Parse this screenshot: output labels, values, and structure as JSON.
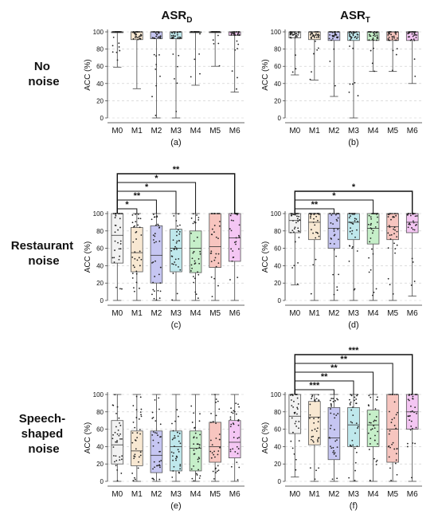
{
  "column_headers": [
    {
      "main": "ASR",
      "sub": "D"
    },
    {
      "main": "ASR",
      "sub": "T"
    }
  ],
  "row_labels": [
    [
      "No",
      "noise"
    ],
    [
      "Restaurant",
      "noise"
    ],
    [
      "Speech-",
      "shaped",
      "noise"
    ]
  ],
  "colors": [
    "#f2f2f2",
    "#f8e8d2",
    "#c6c6f2",
    "#bfe8ec",
    "#c6efc9",
    "#f7c5bf",
    "#f4c6f3"
  ],
  "chart_data": [
    {
      "type": "box",
      "panel_label": "(a)",
      "ylabel": "ACC (%)",
      "ylim": [
        0,
        100
      ],
      "yticks": [
        0,
        20,
        40,
        60,
        80,
        100
      ],
      "categories": [
        "M0",
        "M1",
        "M2",
        "M3",
        "M4",
        "M5",
        "M6"
      ],
      "grid": "horizontal-dashed",
      "boxes": [
        {
          "min": 59,
          "q1": 100,
          "median": 100,
          "q3": 100,
          "max": 100
        },
        {
          "min": 34,
          "q1": 91,
          "median": 100,
          "q3": 100,
          "max": 100
        },
        {
          "min": 0,
          "q1": 92,
          "median": 100,
          "q3": 100,
          "max": 100
        },
        {
          "min": 0,
          "q1": 92,
          "median": 100,
          "q3": 100,
          "max": 100
        },
        {
          "min": 38,
          "q1": 100,
          "median": 100,
          "q3": 100,
          "max": 100
        },
        {
          "min": 60,
          "q1": 100,
          "median": 100,
          "q3": 100,
          "max": 100
        },
        {
          "min": 30,
          "q1": 96,
          "median": 100,
          "q3": 100,
          "max": 100
        }
      ],
      "significance": []
    },
    {
      "type": "box",
      "panel_label": "(b)",
      "ylabel": "ACC (%)",
      "ylim": [
        0,
        100
      ],
      "yticks": [
        0,
        20,
        40,
        60,
        80,
        100
      ],
      "categories": [
        "M0",
        "M1",
        "M2",
        "M3",
        "M4",
        "M5",
        "M6"
      ],
      "grid": "horizontal-dashed",
      "boxes": [
        {
          "min": 50,
          "q1": 93,
          "median": 100,
          "q3": 100,
          "max": 100
        },
        {
          "min": 44,
          "q1": 91,
          "median": 100,
          "q3": 100,
          "max": 100
        },
        {
          "min": 25,
          "q1": 90,
          "median": 100,
          "q3": 100,
          "max": 100
        },
        {
          "min": 0,
          "q1": 90,
          "median": 100,
          "q3": 100,
          "max": 100
        },
        {
          "min": 54,
          "q1": 90,
          "median": 100,
          "q3": 100,
          "max": 100
        },
        {
          "min": 54,
          "q1": 90,
          "median": 100,
          "q3": 100,
          "max": 100
        },
        {
          "min": 40,
          "q1": 90,
          "median": 100,
          "q3": 100,
          "max": 100
        }
      ],
      "significance": []
    },
    {
      "type": "box",
      "panel_label": "(c)",
      "ylabel": "ACC (%)",
      "ylim": [
        0,
        100
      ],
      "yticks": [
        0,
        20,
        40,
        60,
        80,
        100
      ],
      "categories": [
        "M0",
        "M1",
        "M2",
        "M3",
        "M4",
        "M5",
        "M6"
      ],
      "grid": "horizontal-dashed",
      "boxes": [
        {
          "min": 0,
          "q1": 43,
          "median": 75,
          "q3": 100,
          "max": 100
        },
        {
          "min": 0,
          "q1": 33,
          "median": 55,
          "q3": 84,
          "max": 100
        },
        {
          "min": 0,
          "q1": 20,
          "median": 52,
          "q3": 86,
          "max": 100
        },
        {
          "min": 0,
          "q1": 33,
          "median": 60,
          "q3": 82,
          "max": 100
        },
        {
          "min": 0,
          "q1": 32,
          "median": 60,
          "q3": 80,
          "max": 100
        },
        {
          "min": 0,
          "q1": 38,
          "median": 62,
          "q3": 100,
          "max": 100
        },
        {
          "min": 0,
          "q1": 45,
          "median": 72,
          "q3": 100,
          "max": 100
        }
      ],
      "significance": [
        {
          "from": "M0",
          "to": "M1",
          "label": "*"
        },
        {
          "from": "M0",
          "to": "M2",
          "label": "**"
        },
        {
          "from": "M0",
          "to": "M3",
          "label": "*"
        },
        {
          "from": "M0",
          "to": "M4",
          "label": "*"
        },
        {
          "from": "M0",
          "to": "M6",
          "label": "**"
        }
      ]
    },
    {
      "type": "box",
      "panel_label": "(d)",
      "ylabel": "ACC (%)",
      "ylim": [
        0,
        100
      ],
      "yticks": [
        0,
        20,
        40,
        60,
        80,
        100
      ],
      "categories": [
        "M0",
        "M1",
        "M2",
        "M3",
        "M4",
        "M5",
        "M6"
      ],
      "grid": "horizontal-dashed",
      "boxes": [
        {
          "min": 18,
          "q1": 78,
          "median": 92,
          "q3": 100,
          "max": 100
        },
        {
          "min": 0,
          "q1": 70,
          "median": 90,
          "q3": 100,
          "max": 100
        },
        {
          "min": 0,
          "q1": 60,
          "median": 83,
          "q3": 100,
          "max": 100
        },
        {
          "min": 0,
          "q1": 70,
          "median": 90,
          "q3": 100,
          "max": 100
        },
        {
          "min": 0,
          "q1": 65,
          "median": 83,
          "q3": 100,
          "max": 100
        },
        {
          "min": 0,
          "q1": 70,
          "median": 85,
          "q3": 100,
          "max": 100
        },
        {
          "min": 5,
          "q1": 78,
          "median": 90,
          "q3": 100,
          "max": 100
        }
      ],
      "significance": [
        {
          "from": "M0",
          "to": "M2",
          "label": "**"
        },
        {
          "from": "M0",
          "to": "M4",
          "label": "*"
        },
        {
          "from": "M0",
          "to": "M6",
          "label": "*"
        }
      ]
    },
    {
      "type": "box",
      "panel_label": "(e)",
      "ylabel": "ACC (%)",
      "ylim": [
        0,
        100
      ],
      "yticks": [
        0,
        20,
        40,
        60,
        80,
        100
      ],
      "categories": [
        "M0",
        "M1",
        "M2",
        "M3",
        "M4",
        "M5",
        "M6"
      ],
      "grid": "horizontal-dashed",
      "boxes": [
        {
          "min": 0,
          "q1": 20,
          "median": 42,
          "q3": 70,
          "max": 100
        },
        {
          "min": 0,
          "q1": 18,
          "median": 35,
          "q3": 58,
          "max": 100
        },
        {
          "min": 0,
          "q1": 10,
          "median": 30,
          "q3": 58,
          "max": 100
        },
        {
          "min": 0,
          "q1": 12,
          "median": 40,
          "q3": 58,
          "max": 100
        },
        {
          "min": 0,
          "q1": 12,
          "median": 38,
          "q3": 58,
          "max": 100
        },
        {
          "min": 0,
          "q1": 22,
          "median": 40,
          "q3": 68,
          "max": 100
        },
        {
          "min": 0,
          "q1": 27,
          "median": 45,
          "q3": 70,
          "max": 100
        }
      ],
      "significance": []
    },
    {
      "type": "box",
      "panel_label": "(f)",
      "ylabel": "ACC (%)",
      "ylim": [
        0,
        100
      ],
      "yticks": [
        0,
        20,
        40,
        60,
        80,
        100
      ],
      "categories": [
        "M0",
        "M1",
        "M2",
        "M3",
        "M4",
        "M5",
        "M6"
      ],
      "grid": "horizontal-dashed",
      "boxes": [
        {
          "min": 5,
          "q1": 55,
          "median": 75,
          "q3": 100,
          "max": 100
        },
        {
          "min": 0,
          "q1": 42,
          "median": 74,
          "q3": 92,
          "max": 100
        },
        {
          "min": 0,
          "q1": 25,
          "median": 50,
          "q3": 85,
          "max": 100
        },
        {
          "min": 0,
          "q1": 40,
          "median": 65,
          "q3": 85,
          "max": 100
        },
        {
          "min": 0,
          "q1": 40,
          "median": 65,
          "q3": 82,
          "max": 100
        },
        {
          "min": 0,
          "q1": 22,
          "median": 60,
          "q3": 100,
          "max": 100
        },
        {
          "min": 0,
          "q1": 60,
          "median": 80,
          "q3": 100,
          "max": 100
        }
      ],
      "significance": [
        {
          "from": "M0",
          "to": "M2",
          "label": "***"
        },
        {
          "from": "M0",
          "to": "M3",
          "label": "**"
        },
        {
          "from": "M0",
          "to": "M4",
          "label": "**"
        },
        {
          "from": "M0",
          "to": "M5",
          "label": "**"
        },
        {
          "from": "M0",
          "to": "M6",
          "label": "***"
        }
      ]
    }
  ]
}
